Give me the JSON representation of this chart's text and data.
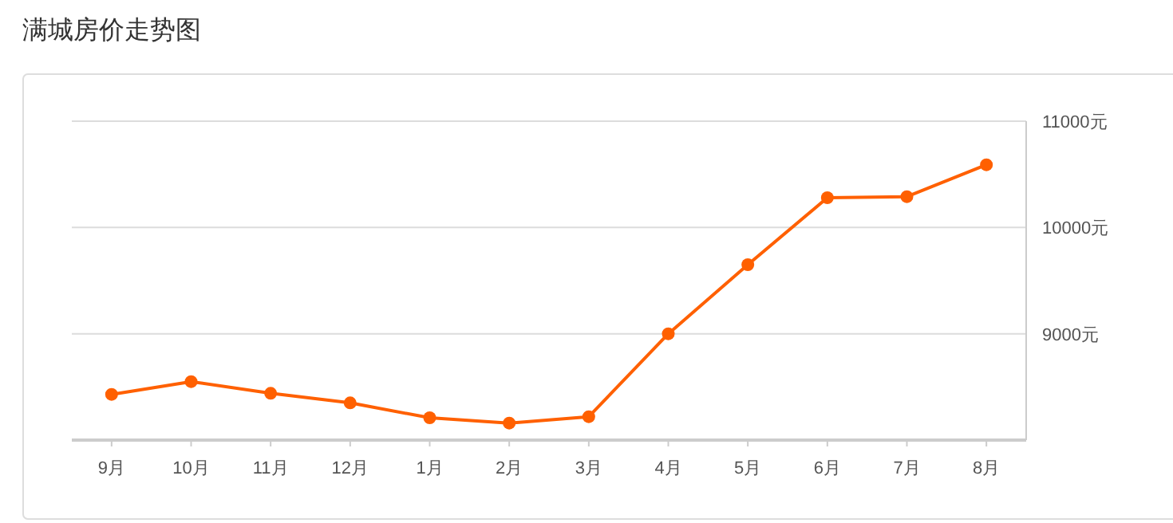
{
  "chart_data": {
    "type": "line",
    "title": "满城房价走势图",
    "categories": [
      "9月",
      "10月",
      "11月",
      "12月",
      "1月",
      "2月",
      "3月",
      "4月",
      "5月",
      "6月",
      "7月",
      "8月"
    ],
    "series": [
      {
        "color": "#ff6000",
        "values": [
          8430,
          8550,
          8440,
          8350,
          8210,
          8160,
          8220,
          9000,
          9650,
          10280,
          10290,
          10590
        ]
      }
    ],
    "ylim": [
      8000,
      11000
    ],
    "yticks": [
      {
        "value": 9000,
        "label": "9000元"
      },
      {
        "value": 10000,
        "label": "10000元"
      },
      {
        "value": 11000,
        "label": "11000元"
      }
    ],
    "grid": "y",
    "marker": "circle",
    "line_style": "solid"
  }
}
